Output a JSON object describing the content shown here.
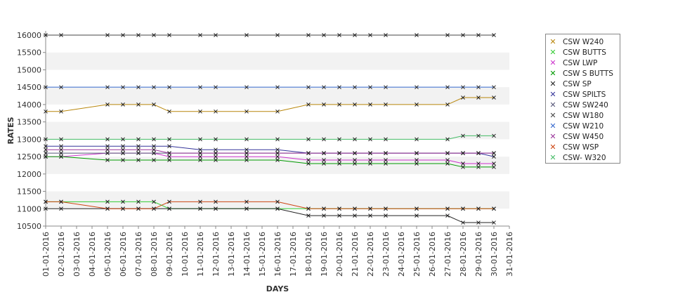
{
  "chart_data": {
    "type": "line",
    "xlabel": "DAYS",
    "ylabel": "RATES",
    "ylim": [
      10500,
      16000
    ],
    "yticks": [
      10500,
      11000,
      11500,
      12000,
      12500,
      13000,
      13500,
      14000,
      14500,
      15000,
      15500,
      16000
    ],
    "grid": "alternating horizontal bands",
    "legend_position": "right",
    "x_ticks": [
      "01-01-2016",
      "02-01-2016",
      "03-01-2016",
      "04-01-2016",
      "05-01-2016",
      "06-01-2016",
      "07-01-2016",
      "08-01-2016",
      "09-01-2016",
      "10-01-2016",
      "11-01-2016",
      "12-01-2016",
      "13-01-2016",
      "14-01-2016",
      "15-01-2016",
      "16-01-2016",
      "17-01-2016",
      "18-01-2016",
      "19-01-2016",
      "20-01-2016",
      "21-01-2016",
      "22-01-2016",
      "23-01-2016",
      "24-01-2016",
      "25-01-2016",
      "26-01-2016",
      "27-01-2016",
      "28-01-2016",
      "29-01-2016",
      "30-01-2016",
      "31-01-2016"
    ],
    "x": [
      "01-01-2016",
      "02-01-2016",
      "05-01-2016",
      "06-01-2016",
      "07-01-2016",
      "08-01-2016",
      "09-01-2016",
      "11-01-2016",
      "12-01-2016",
      "14-01-2016",
      "16-01-2016",
      "18-01-2016",
      "19-01-2016",
      "20-01-2016",
      "21-01-2016",
      "22-01-2016",
      "23-01-2016",
      "25-01-2016",
      "27-01-2016",
      "28-01-2016",
      "29-01-2016",
      "30-01-2016"
    ],
    "series": [
      {
        "name": "CSW  W240",
        "color": "#b8860b",
        "values": [
          13800,
          13800,
          14000,
          14000,
          14000,
          14000,
          13800,
          13800,
          13800,
          13800,
          13800,
          14000,
          14000,
          14000,
          14000,
          14000,
          14000,
          14000,
          14000,
          14200,
          14200,
          14200
        ]
      },
      {
        "name": "CSW BUTTS",
        "color": "#33cc33",
        "values": [
          11200,
          11200,
          11200,
          11200,
          11200,
          11200,
          11000,
          11000,
          11000,
          11000,
          11000,
          11000,
          11000,
          11000,
          11000,
          11000,
          11000,
          11000,
          11000,
          11000,
          11000,
          11000
        ]
      },
      {
        "name": "CSW LWP",
        "color": "#cc33cc",
        "values": [
          12500,
          12500,
          12600,
          12600,
          12600,
          12600,
          12500,
          12500,
          12500,
          12500,
          12500,
          12400,
          12400,
          12400,
          12400,
          12400,
          12400,
          12400,
          12400,
          12300,
          12300,
          12300
        ]
      },
      {
        "name": "CSW S BUTTS",
        "color": "#009900",
        "values": [
          12500,
          12500,
          12400,
          12400,
          12400,
          12400,
          12400,
          12400,
          12400,
          12400,
          12400,
          12300,
          12300,
          12300,
          12300,
          12300,
          12300,
          12300,
          12300,
          12200,
          12200,
          12200
        ]
      },
      {
        "name": "CSW SP",
        "color": "#222222",
        "values": [
          11000,
          11000,
          11000,
          11000,
          11000,
          11000,
          11000,
          11000,
          11000,
          11000,
          11000,
          10800,
          10800,
          10800,
          10800,
          10800,
          10800,
          10800,
          10800,
          10600,
          10600,
          10600
        ]
      },
      {
        "name": "CSW SPILTS",
        "color": "#333399",
        "values": [
          12800,
          12800,
          12800,
          12800,
          12800,
          12800,
          12800,
          12700,
          12700,
          12700,
          12700,
          12600,
          12600,
          12600,
          12600,
          12600,
          12600,
          12600,
          12600,
          12600,
          12600,
          12500
        ]
      },
      {
        "name": "CSW SW240",
        "color": "#555577",
        "values": [
          12600,
          12600,
          12600,
          12600,
          12600,
          12600,
          12600,
          12600,
          12600,
          12600,
          12600,
          12600,
          12600,
          12600,
          12600,
          12600,
          12600,
          12600,
          12600,
          12600,
          12600,
          12600
        ]
      },
      {
        "name": "CSW W180",
        "color": "#444444",
        "values": [
          16000,
          16000,
          16000,
          16000,
          16000,
          16000,
          16000,
          16000,
          16000,
          16000,
          16000,
          16000,
          16000,
          16000,
          16000,
          16000,
          16000,
          16000,
          16000,
          16000,
          16000,
          16000
        ]
      },
      {
        "name": "CSW W210",
        "color": "#3366cc",
        "values": [
          14500,
          14500,
          14500,
          14500,
          14500,
          14500,
          14500,
          14500,
          14500,
          14500,
          14500,
          14500,
          14500,
          14500,
          14500,
          14500,
          14500,
          14500,
          14500,
          14500,
          14500,
          14500
        ]
      },
      {
        "name": "CSW W450",
        "color": "#993399",
        "values": [
          12700,
          12700,
          12700,
          12700,
          12700,
          12700,
          12600,
          12600,
          12600,
          12600,
          12600,
          12600,
          12600,
          12600,
          12600,
          12600,
          12600,
          12600,
          12600,
          12600,
          12600,
          12600
        ]
      },
      {
        "name": "CSW WSP",
        "color": "#cc4411",
        "values": [
          11200,
          11200,
          11000,
          11000,
          11000,
          11000,
          11200,
          11200,
          11200,
          11200,
          11200,
          11000,
          11000,
          11000,
          11000,
          11000,
          11000,
          11000,
          11000,
          11000,
          11000,
          11000
        ]
      },
      {
        "name": "CSW- W320",
        "color": "#44bb66",
        "values": [
          13000,
          13000,
          13000,
          13000,
          13000,
          13000,
          13000,
          13000,
          13000,
          13000,
          13000,
          13000,
          13000,
          13000,
          13000,
          13000,
          13000,
          13000,
          13000,
          13100,
          13100,
          13100
        ]
      }
    ]
  }
}
